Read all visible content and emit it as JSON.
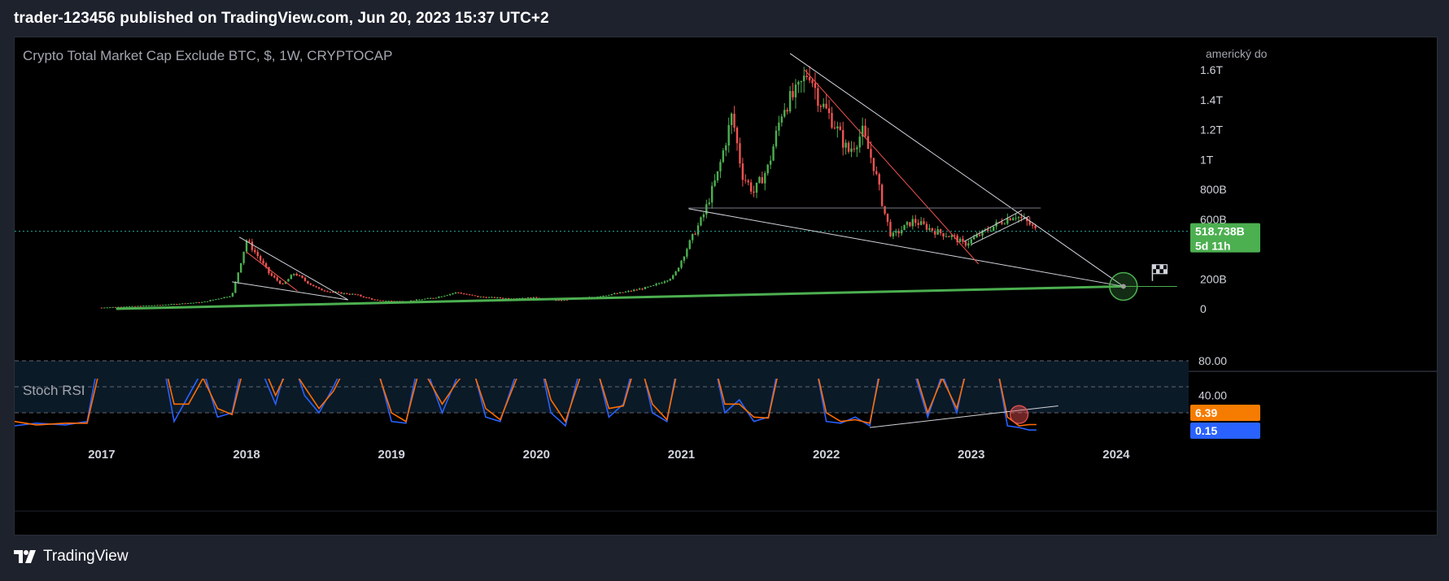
{
  "header": {
    "text": "trader-123456 published on TradingView.com, Jun 20, 2023 15:37 UTC+2"
  },
  "footer": {
    "brand": "TradingView",
    "logo_icon": "tradingview-logo-icon"
  },
  "chart_data": [
    {
      "type": "candlestick",
      "title": "Crypto Total Market Cap Exclude BTC, $, 1W, CRYPTOCAP",
      "currency_label": "americký do",
      "y_ticks": [
        {
          "value": 1600,
          "label": "1.6T"
        },
        {
          "value": 1400,
          "label": "1.4T"
        },
        {
          "value": 1200,
          "label": "1.2T"
        },
        {
          "value": 1000,
          "label": "1T"
        },
        {
          "value": 800,
          "label": "800B"
        },
        {
          "value": 600,
          "label": "600B"
        },
        {
          "value": 200,
          "label": "200B"
        },
        {
          "value": 0,
          "label": "0"
        }
      ],
      "y_unit": "billions USD",
      "ylim": [
        -5,
        1720
      ],
      "x_ticks": [
        "2017",
        "2018",
        "2019",
        "2020",
        "2021",
        "2022",
        "2023",
        "2024"
      ],
      "xlim": [
        2016.4,
        2024.5
      ],
      "colors": {
        "up": "#26a69a",
        "down": "#ef5350",
        "up_wick": "#4caf50"
      },
      "series_close": [
        {
          "x": 2016.4,
          "y": 5
        },
        {
          "x": 2017.0,
          "y": 8
        },
        {
          "x": 2017.4,
          "y": 25
        },
        {
          "x": 2017.7,
          "y": 45
        },
        {
          "x": 2017.9,
          "y": 90
        },
        {
          "x": 2018.0,
          "y": 460
        },
        {
          "x": 2018.08,
          "y": 350
        },
        {
          "x": 2018.16,
          "y": 230
        },
        {
          "x": 2018.25,
          "y": 160
        },
        {
          "x": 2018.33,
          "y": 240
        },
        {
          "x": 2018.4,
          "y": 190
        },
        {
          "x": 2018.5,
          "y": 130
        },
        {
          "x": 2018.6,
          "y": 110
        },
        {
          "x": 2018.75,
          "y": 95
        },
        {
          "x": 2018.9,
          "y": 55
        },
        {
          "x": 2019.1,
          "y": 50
        },
        {
          "x": 2019.3,
          "y": 75
        },
        {
          "x": 2019.45,
          "y": 110
        },
        {
          "x": 2019.6,
          "y": 80
        },
        {
          "x": 2019.8,
          "y": 70
        },
        {
          "x": 2020.0,
          "y": 75
        },
        {
          "x": 2020.15,
          "y": 55
        },
        {
          "x": 2020.4,
          "y": 80
        },
        {
          "x": 2020.6,
          "y": 110
        },
        {
          "x": 2020.8,
          "y": 150
        },
        {
          "x": 2020.95,
          "y": 220
        },
        {
          "x": 2021.05,
          "y": 430
        },
        {
          "x": 2021.15,
          "y": 620
        },
        {
          "x": 2021.25,
          "y": 900
        },
        {
          "x": 2021.35,
          "y": 1300
        },
        {
          "x": 2021.42,
          "y": 900
        },
        {
          "x": 2021.5,
          "y": 780
        },
        {
          "x": 2021.6,
          "y": 950
        },
        {
          "x": 2021.7,
          "y": 1350
        },
        {
          "x": 2021.8,
          "y": 1450
        },
        {
          "x": 2021.88,
          "y": 1600
        },
        {
          "x": 2021.95,
          "y": 1400
        },
        {
          "x": 2022.05,
          "y": 1250
        },
        {
          "x": 2022.15,
          "y": 1050
        },
        {
          "x": 2022.25,
          "y": 1180
        },
        {
          "x": 2022.33,
          "y": 950
        },
        {
          "x": 2022.4,
          "y": 650
        },
        {
          "x": 2022.45,
          "y": 480
        },
        {
          "x": 2022.6,
          "y": 590
        },
        {
          "x": 2022.75,
          "y": 520
        },
        {
          "x": 2022.88,
          "y": 480
        },
        {
          "x": 2022.95,
          "y": 430
        },
        {
          "x": 2023.1,
          "y": 520
        },
        {
          "x": 2023.2,
          "y": 580
        },
        {
          "x": 2023.3,
          "y": 630
        },
        {
          "x": 2023.4,
          "y": 570
        },
        {
          "x": 2023.45,
          "y": 518.738
        }
      ],
      "last_price": {
        "value": 518.738,
        "label": "518.738B",
        "countdown": "5d 11h"
      }
    },
    {
      "type": "line",
      "title": "Stoch RSI",
      "y_ticks": [
        {
          "value": 80,
          "label": "80.00"
        },
        {
          "value": 40,
          "label": "40.00"
        }
      ],
      "bands": [
        80,
        20
      ],
      "ylim": [
        0,
        100
      ],
      "colors": {
        "k": "#2962ff",
        "d": "#ff6d00",
        "band_fill": "#0b1a27"
      },
      "series": [
        {
          "name": "K",
          "x": [
            2016.4,
            2016.55,
            2016.75,
            2016.9,
            2017.0,
            2017.1,
            2017.25,
            2017.4,
            2017.5,
            2017.6,
            2017.7,
            2017.8,
            2017.9,
            2018.0,
            2018.1,
            2018.2,
            2018.3,
            2018.4,
            2018.5,
            2018.6,
            2018.7,
            2018.8,
            2018.9,
            2019.0,
            2019.1,
            2019.2,
            2019.35,
            2019.45,
            2019.55,
            2019.65,
            2019.75,
            2019.9,
            2020.0,
            2020.1,
            2020.2,
            2020.3,
            2020.4,
            2020.5,
            2020.6,
            2020.7,
            2020.8,
            2020.9,
            2021.0,
            2021.1,
            2021.2,
            2021.3,
            2021.4,
            2021.5,
            2021.6,
            2021.7,
            2021.8,
            2021.9,
            2022.0,
            2022.1,
            2022.2,
            2022.3,
            2022.4,
            2022.5,
            2022.6,
            2022.7,
            2022.8,
            2022.9,
            2023.0,
            2023.05,
            2023.15,
            2023.25,
            2023.33,
            2023.4,
            2023.45
          ],
          "values": [
            5,
            8,
            6,
            10,
            100,
            100,
            100,
            100,
            10,
            40,
            70,
            15,
            20,
            100,
            70,
            30,
            90,
            40,
            20,
            50,
            85,
            60,
            75,
            10,
            8,
            90,
            20,
            60,
            80,
            15,
            10,
            85,
            100,
            20,
            5,
            70,
            85,
            15,
            30,
            95,
            20,
            10,
            100,
            90,
            100,
            20,
            35,
            10,
            15,
            100,
            75,
            100,
            10,
            8,
            15,
            5,
            100,
            90,
            70,
            15,
            65,
            20,
            100,
            95,
            100,
            5,
            3,
            0.15,
            0.15
          ]
        },
        {
          "name": "D",
          "x": [
            2016.4,
            2016.55,
            2016.75,
            2016.9,
            2017.0,
            2017.1,
            2017.25,
            2017.4,
            2017.5,
            2017.6,
            2017.7,
            2017.8,
            2017.9,
            2018.0,
            2018.1,
            2018.2,
            2018.3,
            2018.4,
            2018.5,
            2018.6,
            2018.7,
            2018.8,
            2018.9,
            2019.0,
            2019.1,
            2019.2,
            2019.35,
            2019.45,
            2019.55,
            2019.65,
            2019.75,
            2019.9,
            2020.0,
            2020.1,
            2020.2,
            2020.3,
            2020.4,
            2020.5,
            2020.6,
            2020.7,
            2020.8,
            2020.9,
            2021.0,
            2021.1,
            2021.2,
            2021.3,
            2021.4,
            2021.5,
            2021.6,
            2021.7,
            2021.8,
            2021.9,
            2022.0,
            2022.1,
            2022.2,
            2022.3,
            2022.4,
            2022.5,
            2022.6,
            2022.7,
            2022.8,
            2022.9,
            2023.0,
            2023.05,
            2023.15,
            2023.25,
            2023.33,
            2023.4,
            2023.45
          ],
          "values": [
            10,
            6,
            8,
            8,
            80,
            100,
            100,
            100,
            30,
            30,
            60,
            25,
            18,
            85,
            80,
            40,
            75,
            50,
            25,
            45,
            78,
            65,
            70,
            20,
            10,
            75,
            30,
            55,
            75,
            25,
            12,
            75,
            95,
            35,
            10,
            60,
            80,
            25,
            28,
            85,
            30,
            12,
            90,
            92,
            95,
            30,
            30,
            15,
            14,
            90,
            80,
            95,
            20,
            10,
            12,
            8,
            90,
            92,
            75,
            20,
            60,
            25,
            90,
            98,
            95,
            15,
            5,
            6.39,
            6.39
          ]
        }
      ],
      "last_values": [
        {
          "label": "6.39",
          "color": "#f57c00"
        },
        {
          "label": "0.15",
          "color": "#2962ff"
        }
      ]
    }
  ],
  "annotations": {
    "flag_icon": "checkered-flag-icon",
    "target_marker": "target-circle"
  }
}
